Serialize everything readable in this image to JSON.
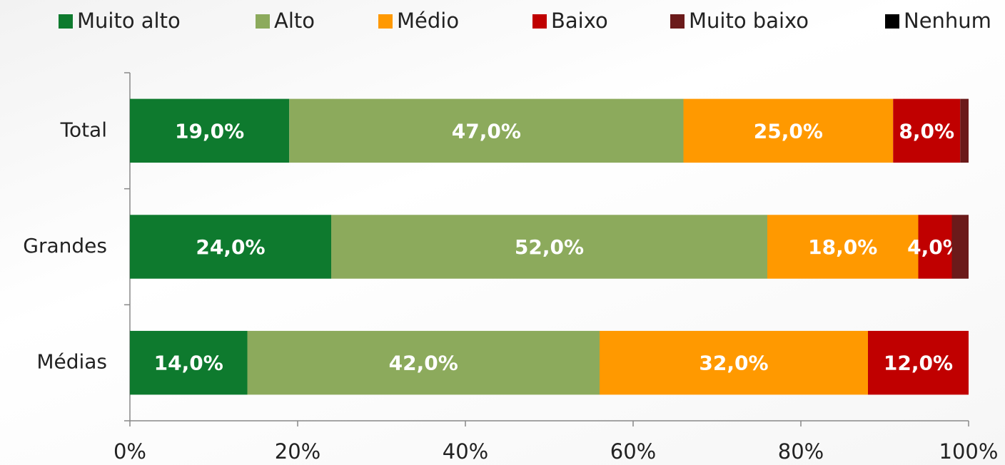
{
  "chart_data": {
    "type": "stacked-bar-horizontal",
    "categories": [
      "Total",
      "Grandes",
      "Médias"
    ],
    "series": [
      {
        "name": "Muito alto",
        "color": "#0e7a2e",
        "values": [
          19,
          24,
          14
        ],
        "value_labels": [
          "19,0%",
          "24,0%",
          "14,0%"
        ]
      },
      {
        "name": "Alto",
        "color": "#8caa5c",
        "values": [
          47,
          52,
          42
        ],
        "value_labels": [
          "47,0%",
          "52,0%",
          "42,0%"
        ]
      },
      {
        "name": "Médio",
        "color": "#ff9900",
        "values": [
          25,
          18,
          32
        ],
        "value_labels": [
          "25,0%",
          "18,0%",
          "32,0%"
        ]
      },
      {
        "name": "Baixo",
        "color": "#c00000",
        "values": [
          8,
          4,
          12
        ],
        "value_labels": [
          "8,0%",
          "4,0%",
          "12,0%"
        ]
      },
      {
        "name": "Muito baixo",
        "color": "#6b1a1a",
        "values": [
          1,
          2,
          0
        ]
      },
      {
        "name": "Nenhum",
        "color": "#000000",
        "values": [
          0,
          0,
          0
        ]
      }
    ],
    "xlim": [
      0,
      100
    ],
    "xticks": [
      {
        "value": 0,
        "label": "0%"
      },
      {
        "value": 20,
        "label": "20%"
      },
      {
        "value": 40,
        "label": "40%"
      },
      {
        "value": 60,
        "label": "60%"
      },
      {
        "value": 80,
        "label": "80%"
      },
      {
        "value": 100,
        "label": "100%"
      }
    ],
    "legend": "top"
  }
}
